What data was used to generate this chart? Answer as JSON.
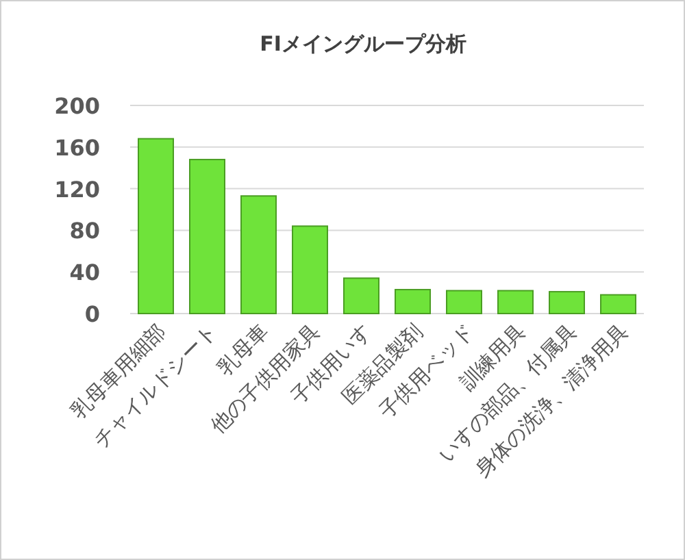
{
  "chart_data": {
    "type": "bar",
    "title": "FIメイングループ分析",
    "categories": [
      "乳母車用細部",
      "チャイルドシート",
      "乳母車",
      "他の子供用家具",
      "子供用いす",
      "医薬品製剤",
      "子供用ベッド",
      "訓練用具",
      "いすの部品、付属具",
      "身体の洗浄、清浄用具"
    ],
    "values": [
      168,
      148,
      113,
      84,
      34,
      23,
      22,
      22,
      21,
      18
    ],
    "color": "#6fe33a",
    "ylim": [
      0,
      200
    ],
    "yticks": [
      0,
      40,
      80,
      120,
      160,
      200
    ],
    "grid": "y"
  }
}
